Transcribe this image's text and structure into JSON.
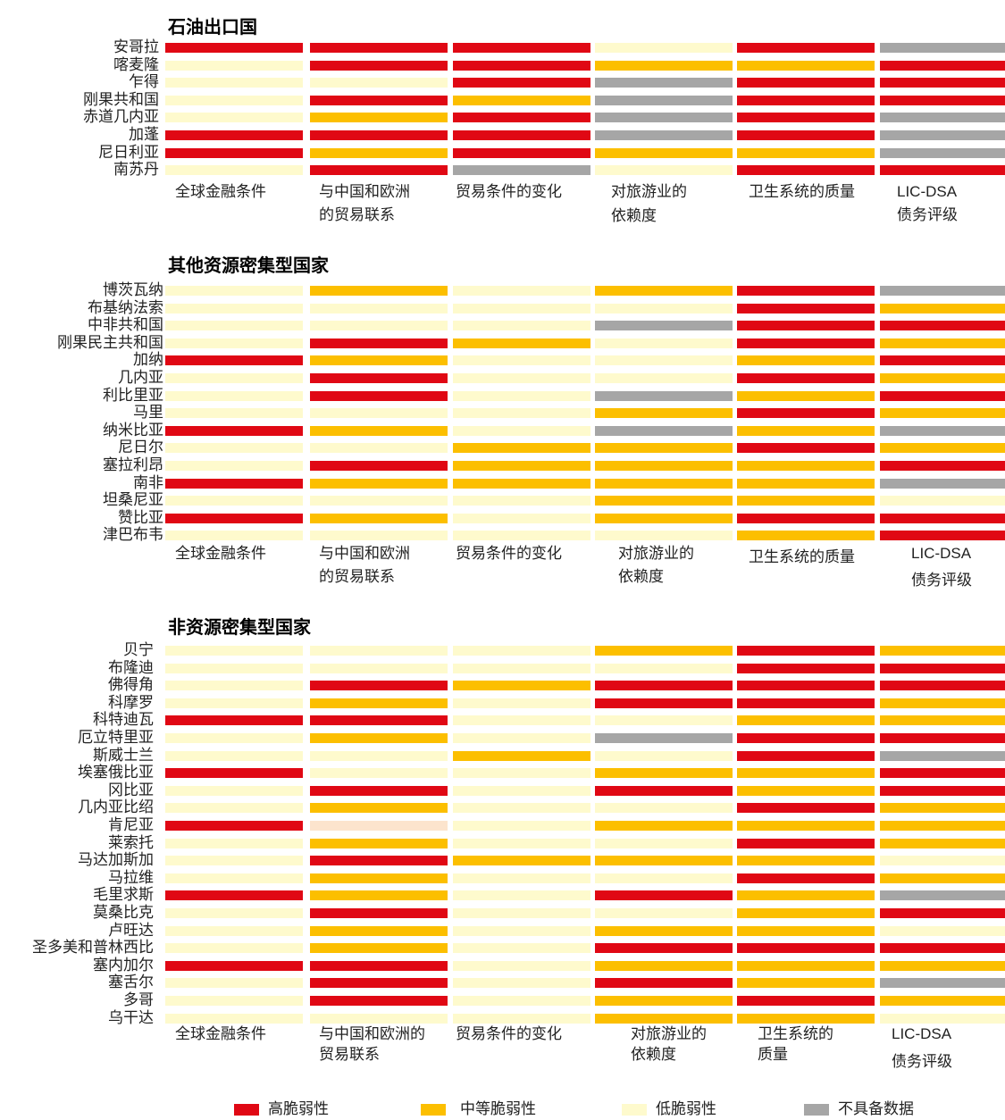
{
  "colors": {
    "high": "#e00814",
    "medium": "#fcbf00",
    "low": "#fefacd",
    "na": "#a6a6a6",
    "faded": "#fce4cd"
  },
  "chart_data": [
    {
      "type": "heatmap",
      "title": "石油出口国",
      "columns": [
        [
          "全球金融条件"
        ],
        [
          "与中国和欧洲",
          "的贸易联系"
        ],
        [
          "贸易条件的变化"
        ],
        [
          "对旅游业的",
          "依赖度"
        ],
        [
          "卫生系统的质量"
        ],
        [
          "LIC-DSA",
          "债务评级"
        ]
      ],
      "rows": [
        "安哥拉",
        "喀麦隆",
        "乍得",
        "刚果共和国",
        "赤道几内亚",
        "加蓬",
        "尼日利亚",
        "南苏丹"
      ],
      "values": [
        [
          "high",
          "high",
          "high",
          "low",
          "high",
          "na"
        ],
        [
          "low",
          "high",
          "high",
          "medium",
          "medium",
          "high"
        ],
        [
          "low",
          "low",
          "high",
          "na",
          "high",
          "high"
        ],
        [
          "low",
          "high",
          "medium",
          "na",
          "high",
          "high"
        ],
        [
          "low",
          "medium",
          "high",
          "na",
          "high",
          "na"
        ],
        [
          "high",
          "high",
          "high",
          "na",
          "high",
          "na"
        ],
        [
          "high",
          "medium",
          "high",
          "medium",
          "medium",
          "na"
        ],
        [
          "low",
          "high",
          "na",
          "low",
          "high",
          "high"
        ]
      ]
    },
    {
      "type": "heatmap",
      "title": "其他资源密集型国家",
      "columns": [
        [
          "全球金融条件"
        ],
        [
          "与中国和欧洲",
          "的贸易联系"
        ],
        [
          "贸易条件的变化"
        ],
        [
          "对旅游业的",
          "依赖度"
        ],
        [
          "卫生系统的质量"
        ],
        [
          "LIC-DSA",
          "债务评级"
        ]
      ],
      "rows": [
        "博茨瓦纳",
        "布基纳法索",
        "中非共和国",
        "刚果民主共和国",
        "加纳",
        "几内亚",
        "利比里亚",
        "马里",
        "纳米比亚",
        "尼日尔",
        "塞拉利昂",
        "南非",
        "坦桑尼亚",
        "赞比亚",
        "津巴布韦"
      ],
      "values": [
        [
          "low",
          "medium",
          "low",
          "medium",
          "high",
          "na"
        ],
        [
          "low",
          "low",
          "low",
          "low",
          "high",
          "medium"
        ],
        [
          "low",
          "low",
          "low",
          "na",
          "high",
          "high"
        ],
        [
          "low",
          "high",
          "medium",
          "low",
          "high",
          "medium"
        ],
        [
          "high",
          "medium",
          "low",
          "low",
          "medium",
          "high"
        ],
        [
          "low",
          "high",
          "low",
          "low",
          "high",
          "medium"
        ],
        [
          "low",
          "high",
          "low",
          "na",
          "medium",
          "high"
        ],
        [
          "low",
          "low",
          "low",
          "medium",
          "high",
          "medium"
        ],
        [
          "high",
          "medium",
          "low",
          "na",
          "medium",
          "na"
        ],
        [
          "low",
          "low",
          "medium",
          "medium",
          "high",
          "medium"
        ],
        [
          "low",
          "high",
          "medium",
          "medium",
          "medium",
          "high"
        ],
        [
          "high",
          "medium",
          "medium",
          "medium",
          "medium",
          "na"
        ],
        [
          "low",
          "low",
          "low",
          "medium",
          "medium",
          "low"
        ],
        [
          "high",
          "medium",
          "low",
          "medium",
          "high",
          "high"
        ],
        [
          "low",
          "low",
          "low",
          "low",
          "medium",
          "high"
        ]
      ]
    },
    {
      "type": "heatmap",
      "title": "非资源密集型国家",
      "columns": [
        [
          "全球金融条件"
        ],
        [
          "与中国和欧洲的",
          "贸易联系"
        ],
        [
          "贸易条件的变化"
        ],
        [
          "对旅游业的",
          "依赖度"
        ],
        [
          "卫生系统的",
          "质量"
        ],
        [
          "LIC-DSA",
          "债务评级"
        ]
      ],
      "rows": [
        "贝宁",
        "布隆迪",
        "佛得角",
        "科摩罗",
        "科特迪瓦",
        "厄立特里亚",
        "斯威士兰",
        "埃塞俄比亚",
        "冈比亚",
        "几内亚比绍",
        "肯尼亚",
        "莱索托",
        "马达加斯加",
        "马拉维",
        "毛里求斯",
        "莫桑比克",
        "卢旺达",
        "圣多美和普林西比",
        "塞内加尔",
        "塞舌尔",
        "多哥",
        "乌干达"
      ],
      "values": [
        [
          "low",
          "low",
          "low",
          "medium",
          "high",
          "medium"
        ],
        [
          "low",
          "low",
          "low",
          "low",
          "high",
          "high"
        ],
        [
          "low",
          "high",
          "medium",
          "high",
          "high",
          "high"
        ],
        [
          "low",
          "medium",
          "low",
          "high",
          "high",
          "medium"
        ],
        [
          "high",
          "high",
          "low",
          "low",
          "medium",
          "medium"
        ],
        [
          "low",
          "medium",
          "low",
          "na",
          "high",
          "high"
        ],
        [
          "low",
          "low",
          "medium",
          "low",
          "high",
          "na"
        ],
        [
          "high",
          "low",
          "low",
          "medium",
          "medium",
          "high"
        ],
        [
          "low",
          "high",
          "low",
          "high",
          "medium",
          "high"
        ],
        [
          "low",
          "medium",
          "low",
          "low",
          "high",
          "medium"
        ],
        [
          "high",
          "faded",
          "low",
          "medium",
          "medium",
          "medium"
        ],
        [
          "low",
          "medium",
          "low",
          "low",
          "high",
          "medium"
        ],
        [
          "low",
          "high",
          "medium",
          "medium",
          "medium",
          "low"
        ],
        [
          "low",
          "medium",
          "low",
          "low",
          "high",
          "medium"
        ],
        [
          "high",
          "medium",
          "low",
          "high",
          "medium",
          "na"
        ],
        [
          "low",
          "high",
          "low",
          "low",
          "medium",
          "high"
        ],
        [
          "low",
          "medium",
          "low",
          "medium",
          "medium",
          "low"
        ],
        [
          "low",
          "medium",
          "low",
          "high",
          "high",
          "high"
        ],
        [
          "high",
          "high",
          "low",
          "medium",
          "medium",
          "medium"
        ],
        [
          "low",
          "high",
          "low",
          "high",
          "medium",
          "na"
        ],
        [
          "low",
          "high",
          "low",
          "medium",
          "high",
          "medium"
        ],
        [
          "low",
          "low",
          "low",
          "medium",
          "medium",
          "low"
        ]
      ]
    }
  ],
  "legend": [
    {
      "key": "high",
      "label": "高脆弱性"
    },
    {
      "key": "medium",
      "label": "中等脆弱性"
    },
    {
      "key": "low",
      "label": "低脆弱性"
    },
    {
      "key": "na",
      "label": "不具备数据"
    }
  ]
}
